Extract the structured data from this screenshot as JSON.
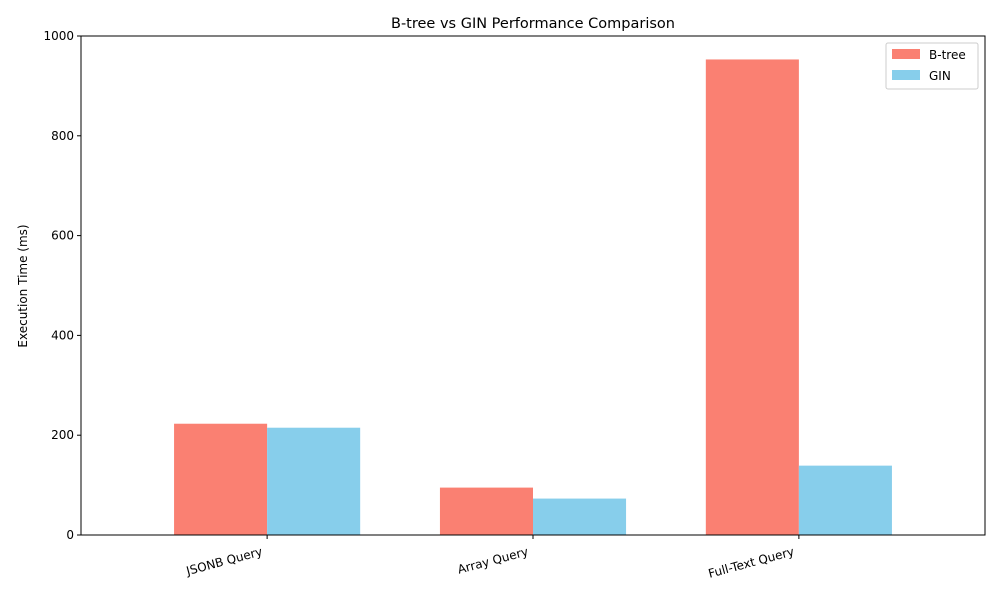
{
  "chart_data": {
    "type": "bar",
    "title": "B-tree vs GIN Performance Comparison",
    "xlabel": "",
    "ylabel": "Execution Time (ms)",
    "categories": [
      "JSONB Query",
      "Array Query",
      "Full-Text Query"
    ],
    "series": [
      {
        "name": "B-tree",
        "values": [
          223,
          95,
          953
        ],
        "color": "#fa8072"
      },
      {
        "name": "GIN",
        "values": [
          215,
          73,
          139
        ],
        "color": "#87ceeb"
      }
    ],
    "ylim": [
      0,
      1000
    ],
    "yticks": [
      0,
      200,
      400,
      600,
      800,
      1000
    ],
    "grid": false,
    "legend_position": "top-right"
  }
}
